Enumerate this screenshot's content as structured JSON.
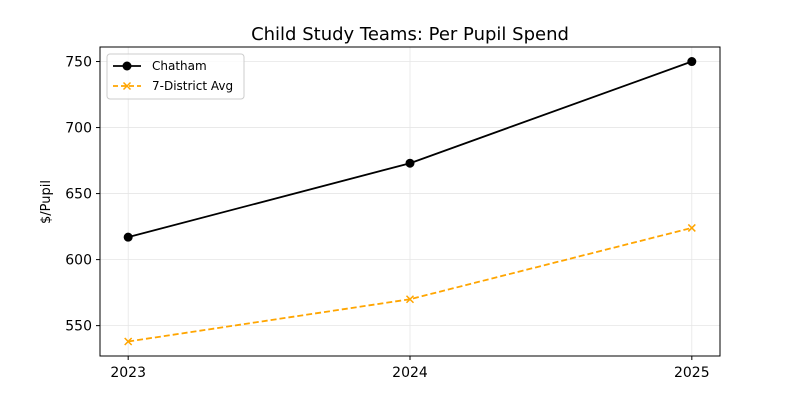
{
  "chart_data": {
    "type": "line",
    "title": "Child Study Teams: Per Pupil Spend",
    "xlabel": "",
    "ylabel": "$/Pupil",
    "x": [
      2023,
      2024,
      2025
    ],
    "xticks": [
      "2023",
      "2024",
      "2025"
    ],
    "yticks": [
      550,
      600,
      650,
      700,
      750
    ],
    "xlim": [
      2022.9,
      2025.1
    ],
    "ylim": [
      527,
      761
    ],
    "grid": true,
    "legend_position": "top-left",
    "series": [
      {
        "name": "Chatham",
        "values": [
          617,
          673,
          750
        ],
        "color": "#000000",
        "marker": "circle",
        "linestyle": "solid"
      },
      {
        "name": "7-District Avg",
        "values": [
          538,
          570,
          624
        ],
        "color": "#FFA500",
        "marker": "x",
        "linestyle": "dashed"
      }
    ]
  }
}
